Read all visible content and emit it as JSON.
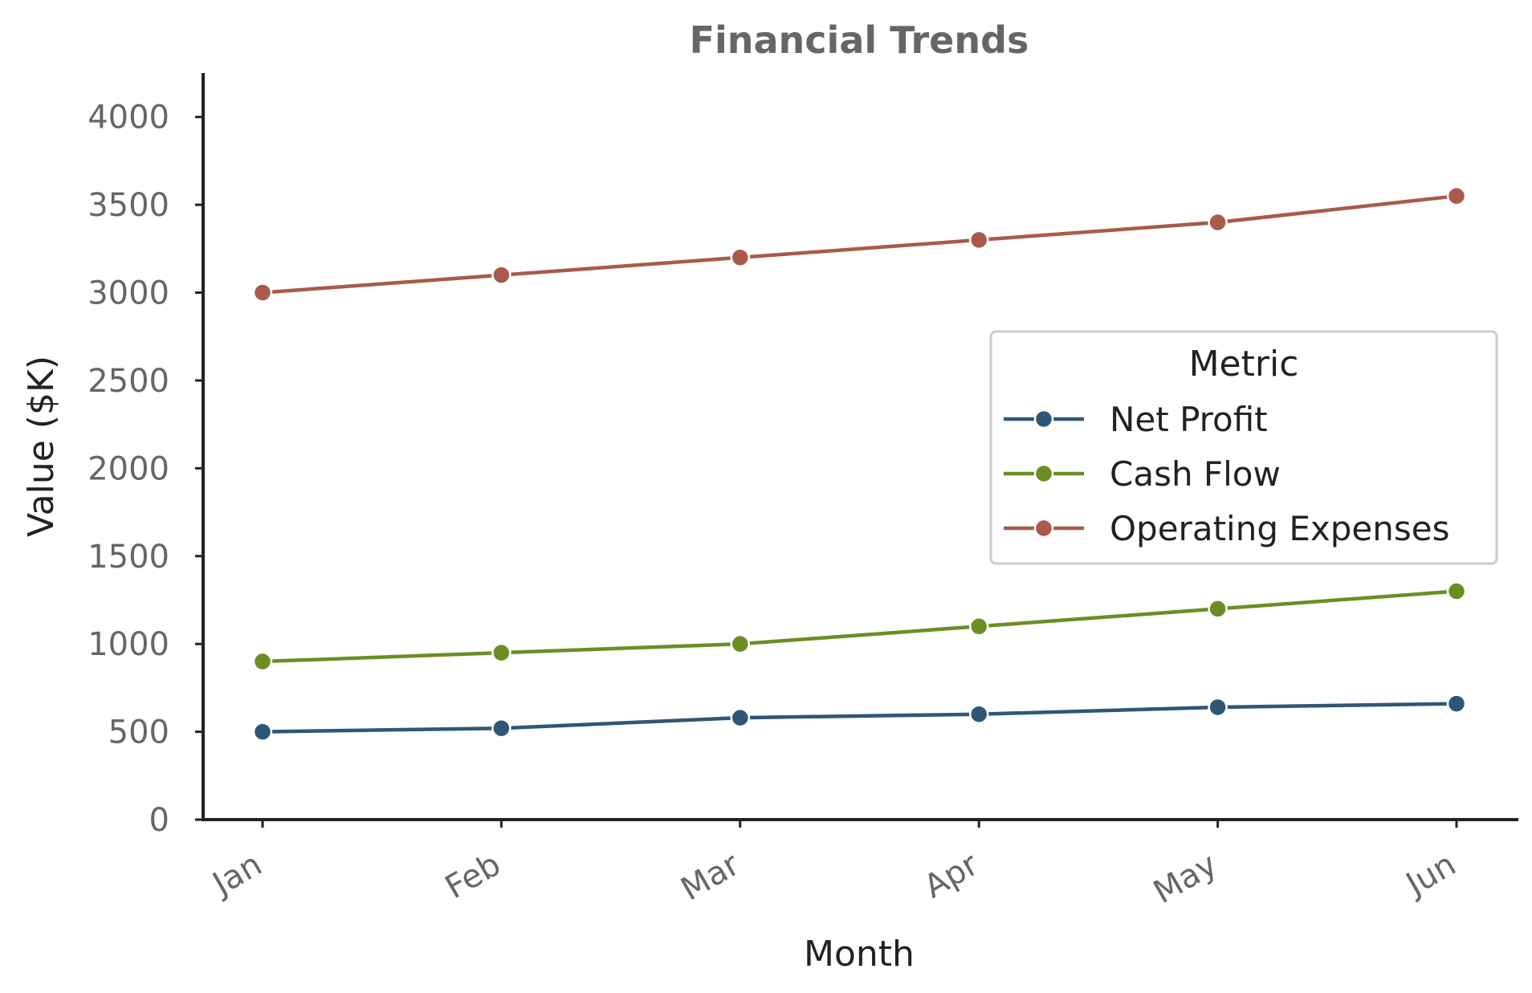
{
  "chart_data": {
    "type": "line",
    "title": "Financial Trends",
    "xlabel": "Month",
    "ylabel": "Value ($K)",
    "categories": [
      "Jan",
      "Feb",
      "Mar",
      "Apr",
      "May",
      "Jun"
    ],
    "ylim": [
      0,
      4250
    ],
    "yticks": [
      0,
      500,
      1000,
      1500,
      2000,
      2500,
      3000,
      3500,
      4000
    ],
    "legend_title": "Metric",
    "legend_position": "center-right",
    "grid": false,
    "series": [
      {
        "name": "Net Profit",
        "color": "#2e5777",
        "values": [
          500,
          520,
          580,
          600,
          640,
          660
        ]
      },
      {
        "name": "Cash Flow",
        "color": "#6b8e23",
        "values": [
          900,
          950,
          1000,
          1100,
          1200,
          1300
        ]
      },
      {
        "name": "Operating Expenses",
        "color": "#a95a4a",
        "values": [
          3000,
          3100,
          3200,
          3300,
          3400,
          3550
        ]
      }
    ]
  }
}
